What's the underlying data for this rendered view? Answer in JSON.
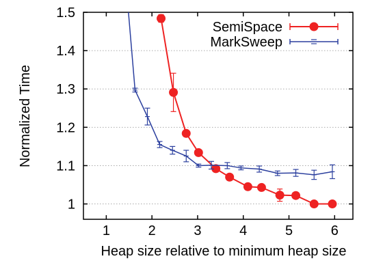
{
  "chart_data": {
    "type": "line",
    "xlabel": "Heap size relative to minimum heap size",
    "ylabel": "Normalized Time",
    "xlim": [
      0.5,
      6.4
    ],
    "ylim": [
      0.96,
      1.5
    ],
    "xticks": [
      1,
      2,
      3,
      4,
      5,
      6
    ],
    "yticks": [
      1,
      1.1,
      1.2,
      1.3,
      1.4,
      1.5
    ],
    "xtick_labels": [
      "1",
      "2",
      "3",
      "4",
      "5",
      "6"
    ],
    "ytick_labels": [
      "1",
      "1.1",
      "1.2",
      "1.3",
      "1.4",
      "1.5"
    ],
    "grid": "horizontal dotted",
    "legend_position": "top-right",
    "series": [
      {
        "name": "SemiSpace",
        "color": "#ee2222",
        "marker": "filled-circle",
        "x": [
          2.2,
          2.47,
          2.75,
          3.02,
          3.4,
          3.7,
          4.1,
          4.4,
          4.8,
          5.15,
          5.55,
          5.95
        ],
        "y": [
          1.484,
          1.291,
          1.184,
          1.134,
          1.092,
          1.07,
          1.045,
          1.043,
          1.023,
          1.022,
          1.0,
          1.0
        ],
        "err": [
          0.01,
          0.05,
          0.005,
          0.004,
          0.005,
          0.006,
          0.008,
          0.006,
          0.016,
          0.007,
          0.003,
          0.004
        ]
      },
      {
        "name": "MarkSweep",
        "color": "#2b3f9e",
        "marker": "tick",
        "x": [
          1.45,
          1.63,
          1.9,
          2.17,
          2.45,
          2.75,
          3.02,
          3.3,
          3.65,
          3.95,
          4.35,
          4.75,
          5.15,
          5.55,
          5.95
        ],
        "y": [
          1.55,
          1.297,
          1.228,
          1.155,
          1.14,
          1.125,
          1.1,
          1.101,
          1.1,
          1.094,
          1.091,
          1.08,
          1.081,
          1.076,
          1.084
        ],
        "err": [
          0,
          0.005,
          0.022,
          0.008,
          0.01,
          0.015,
          0.004,
          0.01,
          0.008,
          0.005,
          0.008,
          0.006,
          0.009,
          0.012,
          0.018
        ]
      }
    ]
  }
}
